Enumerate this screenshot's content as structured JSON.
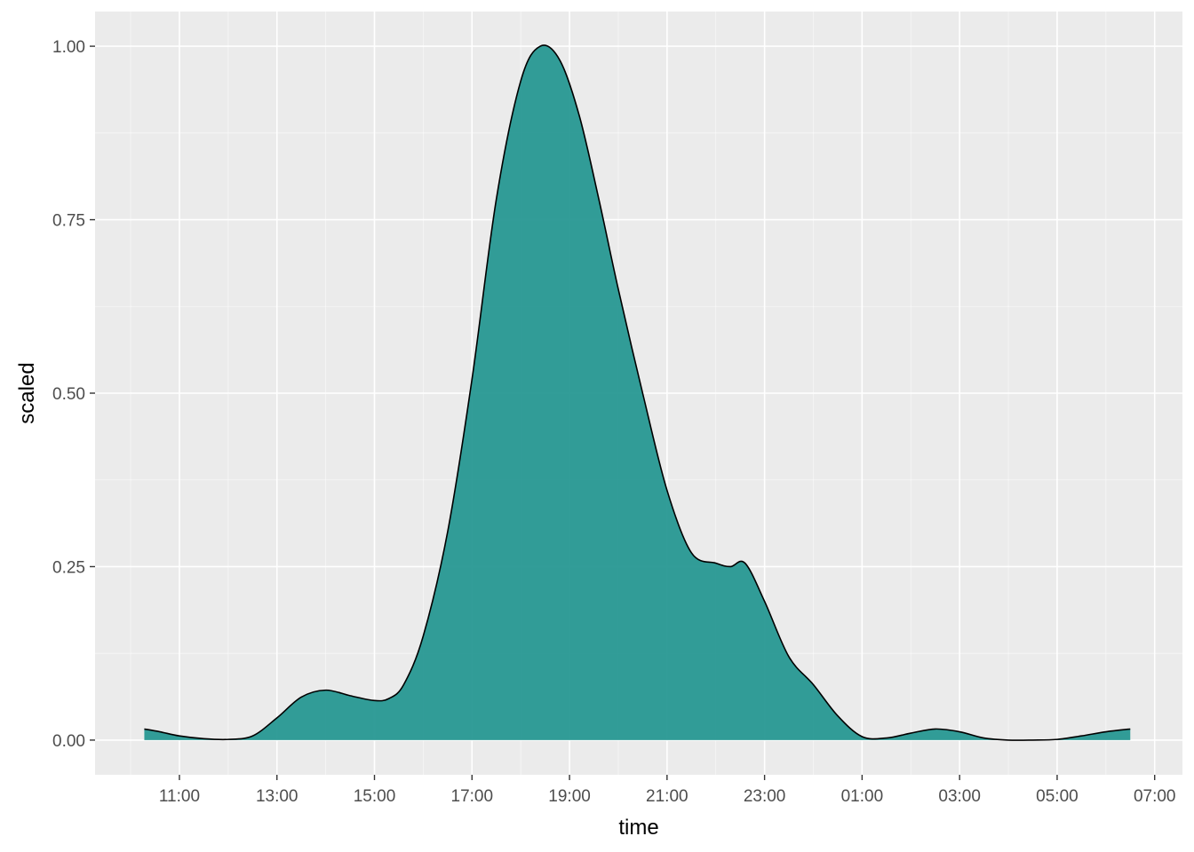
{
  "chart_data": {
    "type": "area",
    "title": "",
    "xlabel": "time",
    "ylabel": "scaled",
    "x_unit": "hours (time of day, wrapping past midnight: 25 = 01:00, 27 = 03:00, ...)",
    "xlim": [
      9.27,
      31.57
    ],
    "ylim": [
      -0.05,
      1.05
    ],
    "x_ticks": [
      {
        "value": 11,
        "label": "11:00"
      },
      {
        "value": 13,
        "label": "13:00"
      },
      {
        "value": 15,
        "label": "15:00"
      },
      {
        "value": 17,
        "label": "17:00"
      },
      {
        "value": 19,
        "label": "19:00"
      },
      {
        "value": 21,
        "label": "21:00"
      },
      {
        "value": 23,
        "label": "23:00"
      },
      {
        "value": 25,
        "label": "01:00"
      },
      {
        "value": 27,
        "label": "03:00"
      },
      {
        "value": 29,
        "label": "05:00"
      },
      {
        "value": 31,
        "label": "07:00"
      }
    ],
    "y_ticks": [
      {
        "value": 0.0,
        "label": "0.00"
      },
      {
        "value": 0.25,
        "label": "0.25"
      },
      {
        "value": 0.5,
        "label": "0.50"
      },
      {
        "value": 0.75,
        "label": "0.75"
      },
      {
        "value": 1.0,
        "label": "1.00"
      }
    ],
    "grid": true,
    "colors": {
      "panel": "#ebebeb",
      "grid_major": "#ffffff",
      "fill": "#21958f",
      "outline": "#000000",
      "tick_text": "#4d4d4d",
      "title_text": "#000000"
    },
    "series": [
      {
        "x": [
          10.28,
          10.6,
          11.0,
          11.5,
          12.0,
          12.5,
          13.0,
          13.5,
          14.0,
          14.5,
          15.0,
          15.3,
          15.6,
          16.0,
          16.5,
          17.0,
          17.5,
          18.0,
          18.4,
          18.8,
          19.2,
          19.6,
          20.0,
          20.5,
          21.0,
          21.5,
          22.0,
          22.3,
          22.6,
          23.0,
          23.5,
          24.0,
          24.5,
          25.0,
          25.5,
          26.0,
          26.5,
          27.0,
          27.5,
          28.0,
          28.5,
          29.0,
          29.5,
          30.0,
          30.5
        ],
        "y": [
          0.016,
          0.012,
          0.006,
          0.002,
          0.001,
          0.006,
          0.032,
          0.062,
          0.072,
          0.064,
          0.057,
          0.06,
          0.08,
          0.15,
          0.3,
          0.52,
          0.78,
          0.95,
          1.0,
          0.98,
          0.9,
          0.78,
          0.65,
          0.5,
          0.36,
          0.27,
          0.255,
          0.25,
          0.255,
          0.2,
          0.12,
          0.08,
          0.035,
          0.005,
          0.003,
          0.01,
          0.016,
          0.012,
          0.003,
          0.0,
          0.0,
          0.001,
          0.006,
          0.012,
          0.016
        ]
      }
    ]
  }
}
